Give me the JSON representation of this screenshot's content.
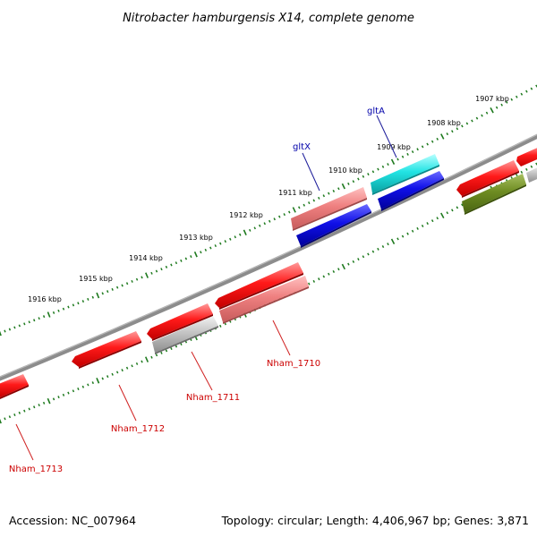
{
  "title": "Nitrobacter hamburgensis X14, complete genome",
  "footer": {
    "accession": "Accession: NC_007964",
    "stats": "Topology: circular; Length: 4,406,967 bp; Genes: 3,871"
  },
  "colors": {
    "backbone": "#8c8c8c",
    "ticks": "#1e7a1e",
    "gene_red": "#ee1111",
    "gene_pink": "#e87575",
    "gene_grey": "#b8b8b8",
    "gene_blue": "#1010dd",
    "gene_cyan": "#19dede",
    "gene_olive": "#6e8c22",
    "label_red": "#cc0000",
    "label_blue": "#0000aa"
  },
  "scale": {
    "labels": [
      "1907 kbp",
      "1908 kbp",
      "1909 kbp",
      "1910 kbp",
      "1911 kbp",
      "1912 kbp",
      "1913 kbp",
      "1914 kbp",
      "1915 kbp",
      "1916 kbp"
    ]
  },
  "genes": {
    "labels": [
      "gltA",
      "gltX",
      "Nham_1710",
      "Nham_1711",
      "Nham_1712",
      "Nham_1713"
    ]
  }
}
